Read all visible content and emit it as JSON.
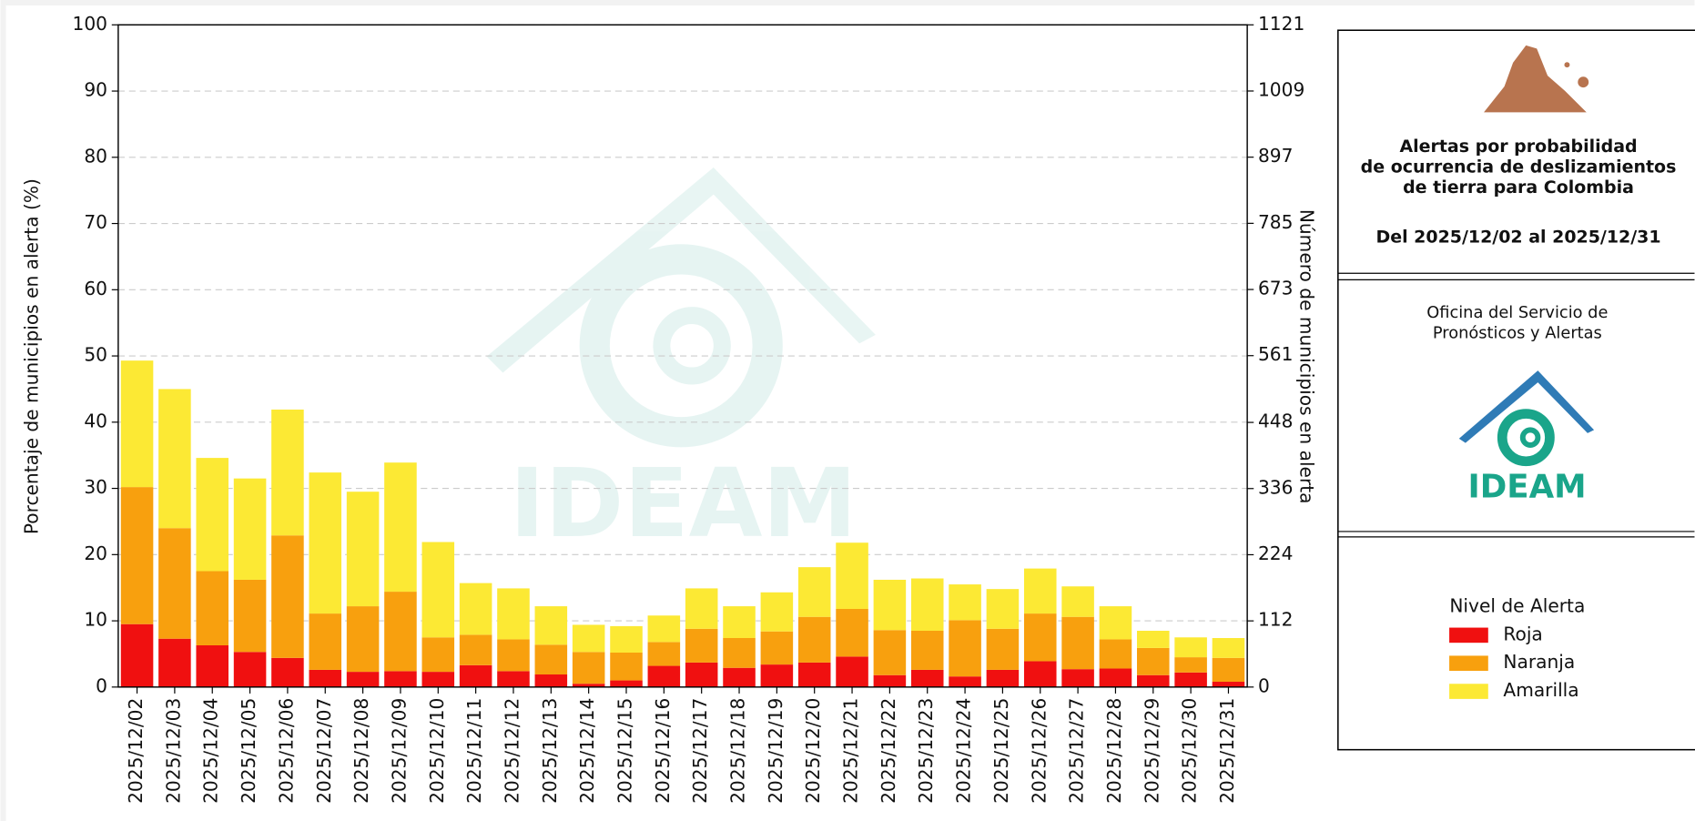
{
  "chart_data": {
    "type": "stacked_bar",
    "ylabel": "Porcentaje de municipios en alerta (%)",
    "y2label": "Número de municipios en alerta",
    "categories": [
      "2025/12/02",
      "2025/12/03",
      "2025/12/04",
      "2025/12/05",
      "2025/12/06",
      "2025/12/07",
      "2025/12/08",
      "2025/12/09",
      "2025/12/10",
      "2025/12/11",
      "2025/12/12",
      "2025/12/13",
      "2025/12/14",
      "2025/12/15",
      "2025/12/16",
      "2025/12/17",
      "2025/12/18",
      "2025/12/19",
      "2025/12/20",
      "2025/12/21",
      "2025/12/22",
      "2025/12/23",
      "2025/12/24",
      "2025/12/25",
      "2025/12/26",
      "2025/12/27",
      "2025/12/28",
      "2025/12/29",
      "2025/12/30",
      "2025/12/31"
    ],
    "series": [
      {
        "name": "Roja",
        "color": "#f01010",
        "values": [
          9.5,
          7.3,
          6.3,
          5.3,
          4.4,
          2.6,
          2.3,
          2.4,
          2.3,
          3.3,
          2.4,
          1.9,
          0.5,
          1.0,
          3.2,
          3.7,
          2.9,
          3.4,
          3.7,
          4.6,
          1.8,
          2.6,
          1.6,
          2.6,
          3.9,
          2.7,
          2.8,
          1.8,
          2.2,
          0.8
        ]
      },
      {
        "name": "Naranja",
        "color": "#f8a00e",
        "values": [
          20.7,
          16.7,
          11.2,
          10.9,
          18.5,
          8.5,
          9.9,
          12.0,
          5.2,
          4.6,
          4.8,
          4.5,
          4.8,
          4.2,
          3.6,
          5.1,
          4.5,
          5.0,
          6.9,
          7.2,
          6.8,
          5.9,
          8.5,
          6.2,
          7.2,
          7.9,
          4.4,
          4.1,
          2.3,
          3.6
        ]
      },
      {
        "name": "Amarilla",
        "color": "#fce934",
        "values": [
          19.1,
          21.0,
          17.1,
          15.3,
          19.0,
          21.3,
          17.3,
          19.5,
          14.4,
          7.8,
          7.7,
          5.8,
          4.1,
          4.0,
          4.0,
          6.1,
          4.8,
          5.9,
          7.5,
          10.0,
          7.6,
          7.9,
          5.4,
          6.0,
          6.8,
          4.6,
          5.0,
          2.6,
          3.0,
          3.0
        ]
      }
    ],
    "ylim": [
      0,
      100
    ],
    "yticks": [
      0,
      10,
      20,
      30,
      40,
      50,
      60,
      70,
      80,
      90,
      100
    ],
    "y2lim": [
      0,
      1121
    ],
    "y2ticks": [
      0,
      112,
      224,
      336,
      448,
      561,
      673,
      785,
      897,
      1009,
      1121
    ],
    "grid": true,
    "watermark": "IDEAM"
  },
  "panel": {
    "title_lines": [
      "Alertas por probabilidad",
      "de ocurrencia de deslizamientos",
      "de tierra para Colombia"
    ],
    "period": "Del 2025/12/02 al 2025/12/31",
    "office_lines": [
      "Oficina del Servicio de",
      "Pronósticos y Alertas"
    ],
    "logo_text": "IDEAM",
    "legend_title": "Nivel de Alerta"
  }
}
